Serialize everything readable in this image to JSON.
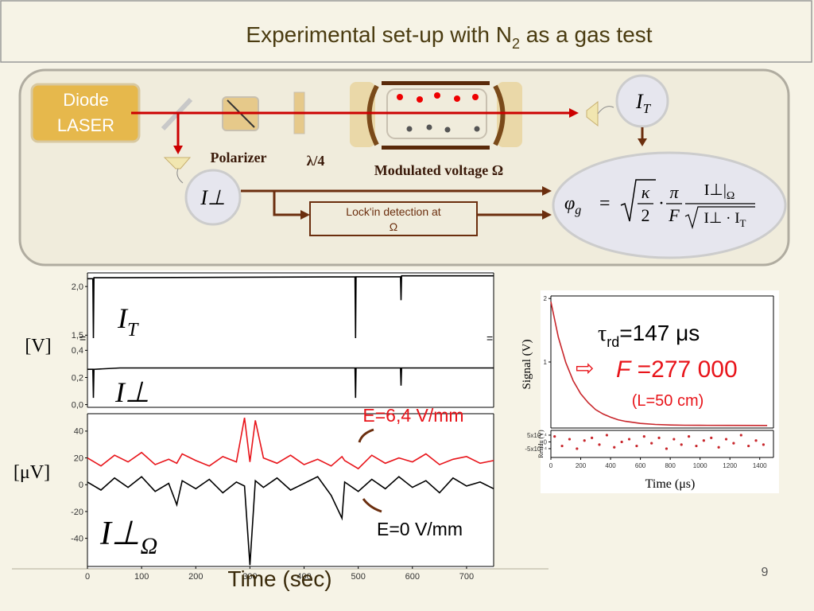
{
  "slide": {
    "title": "Experimental set-up with N",
    "title_sub": "2",
    "title_rest": " as a gas test",
    "page_number": "9"
  },
  "diagram": {
    "laser": [
      "Diode",
      "LASER"
    ],
    "polarizer": "Polarizer",
    "quarter_wave": "λ/4",
    "modulated_voltage": "Modulated voltage Ω",
    "lockin": [
      "Lock'in detection at",
      "Ω"
    ],
    "it_label": "I",
    "it_sub": "T",
    "iperp_label": "I⊥",
    "formula": {
      "lhs": "φ",
      "lhs_sub": "g",
      "eq": "=",
      "kappa": "κ",
      "two": "2",
      "dot": "·",
      "pi": "π",
      "F": "F",
      "num": "I⊥|",
      "num_sub": "Ω",
      "den": "I⊥ · I",
      "den_sub": "T"
    }
  },
  "annotations": {
    "it": "I",
    "it_sub": "T",
    "iperp": "I⊥",
    "v_unit": "[V]",
    "uv_unit": "[μV]",
    "e_high": "E=6,4 V/mm",
    "e_zero": "E=0 V/mm",
    "iperp_omega": "I⊥",
    "iperp_omega_sub": "Ω",
    "tau": "τ",
    "tau_sub": "rd",
    "tau_val": "=147 ",
    "tau_unit": "μs",
    "arrow": "⇨",
    "f_sym": "F",
    "f_val": " =277 000",
    "length": "(L=50 cm)"
  },
  "chart_data": [
    {
      "type": "line",
      "xlim": [
        0,
        750
      ],
      "ylim": [
        1.47,
        2.14
      ],
      "yticks": [
        {
          "value": 1.5,
          "label": "1,5"
        },
        {
          "value": 2,
          "label": "2,0"
        }
      ],
      "x": [
        0,
        10,
        11,
        12,
        60,
        494,
        495,
        496,
        578,
        579,
        580,
        750
      ],
      "series": [
        {
          "color": "#000000",
          "values": [
            2.08,
            2.08,
            1.47,
            2.09,
            2.09,
            2.1,
            1.47,
            2.1,
            2.1,
            1.86,
            2.11,
            2.11
          ]
        }
      ]
    },
    {
      "type": "line",
      "xlim": [
        0,
        750
      ],
      "ylim": [
        -0.02,
        0.49
      ],
      "yticks": [
        {
          "value": 0,
          "label": "0,0"
        },
        {
          "value": 0.2,
          "label": "0,2"
        },
        {
          "value": 0.4,
          "label": "0,4"
        }
      ],
      "x": [
        0,
        10,
        11,
        12,
        60,
        494,
        495,
        496,
        578,
        579,
        580,
        750
      ],
      "series": [
        {
          "color": "#000000",
          "values": [
            0.26,
            0.26,
            0.05,
            0.26,
            0.27,
            0.27,
            0.05,
            0.27,
            0.27,
            0.14,
            0.27,
            0.27
          ]
        }
      ]
    },
    {
      "type": "line",
      "xlim": [
        0,
        750
      ],
      "ylim": [
        -61,
        53
      ],
      "yticks": [
        -40,
        -20,
        0,
        20,
        40
      ],
      "xticks": [
        0,
        100,
        200,
        300,
        400,
        500,
        600,
        700
      ],
      "xlabel": "Time (sec)",
      "x": [
        0,
        25,
        50,
        75,
        100,
        125,
        150,
        165,
        175,
        200,
        225,
        250,
        275,
        290,
        300,
        310,
        325,
        350,
        375,
        400,
        425,
        450,
        470,
        475,
        500,
        525,
        550,
        575,
        600,
        625,
        650,
        675,
        700,
        725,
        750
      ],
      "series": [
        {
          "color": "#e8141a",
          "values": [
            20,
            14,
            22,
            17,
            24,
            15,
            19,
            16,
            23,
            18,
            14,
            21,
            17,
            50,
            17,
            48,
            20,
            16,
            22,
            15,
            19,
            14,
            21,
            18,
            12,
            22,
            16,
            20,
            17,
            23,
            15,
            19,
            21,
            16,
            18
          ]
        },
        {
          "color": "#000000",
          "values": [
            2,
            -4,
            5,
            -2,
            6,
            -5,
            1,
            -15,
            3,
            -3,
            4,
            -6,
            2,
            -1,
            -60,
            3,
            -2,
            5,
            -4,
            1,
            6,
            -8,
            -25,
            2,
            -5,
            4,
            -3,
            6,
            -2,
            3,
            -6,
            5,
            -1,
            2,
            -3
          ]
        }
      ]
    },
    {
      "type": "line",
      "xlim": [
        0,
        1492
      ],
      "ylim": [
        -0.04,
        2.04
      ],
      "yticks": [
        1,
        2
      ],
      "ylabel": "Signal (V)",
      "x": [
        0,
        50,
        100,
        150,
        200,
        250,
        300,
        350,
        400,
        450,
        500,
        600,
        700,
        800,
        900,
        1000,
        1200,
        1450
      ],
      "series": [
        {
          "color": "#c8262b",
          "values": [
            1.95,
            1.39,
            0.99,
            0.7,
            0.5,
            0.36,
            0.25,
            0.18,
            0.13,
            0.09,
            0.065,
            0.033,
            0.017,
            0.008,
            0.004,
            0.002,
            0.001,
            0
          ]
        }
      ]
    },
    {
      "type": "scatter",
      "xlim": [
        0,
        1492
      ],
      "ylim": [
        -0.00115,
        0.00085
      ],
      "yticks": [
        {
          "value": 0.0005,
          "label": "5x10⁻⁴"
        },
        0,
        {
          "value": -0.0005,
          "label": "-5x10⁻⁴"
        }
      ],
      "xticks": [
        0,
        200,
        400,
        600,
        800,
        1000,
        1200,
        1400
      ],
      "xlabel": "Time (μs)",
      "ylabel": "Residu (V)",
      "color": "#c8262b",
      "x": [
        25,
        75,
        125,
        175,
        225,
        275,
        325,
        375,
        425,
        475,
        525,
        575,
        625,
        675,
        725,
        775,
        825,
        875,
        925,
        975,
        1025,
        1075,
        1125,
        1175,
        1225,
        1275,
        1325,
        1375,
        1425
      ],
      "values": [
        0.0004,
        -0.0003,
        0.0002,
        -0.0005,
        0.0001,
        0.0003,
        -0.0002,
        0.0005,
        -0.0004,
        0,
        0.0002,
        -0.0003,
        0.0004,
        -0.0001,
        0.0003,
        -0.0005,
        0.0002,
        -0.0002,
        0.0004,
        -0.0003,
        0.0001,
        0.0003,
        -0.0004,
        0.0002,
        -0.0001,
        0.0005,
        -0.0003,
        0.0001,
        -0.0002
      ]
    }
  ]
}
